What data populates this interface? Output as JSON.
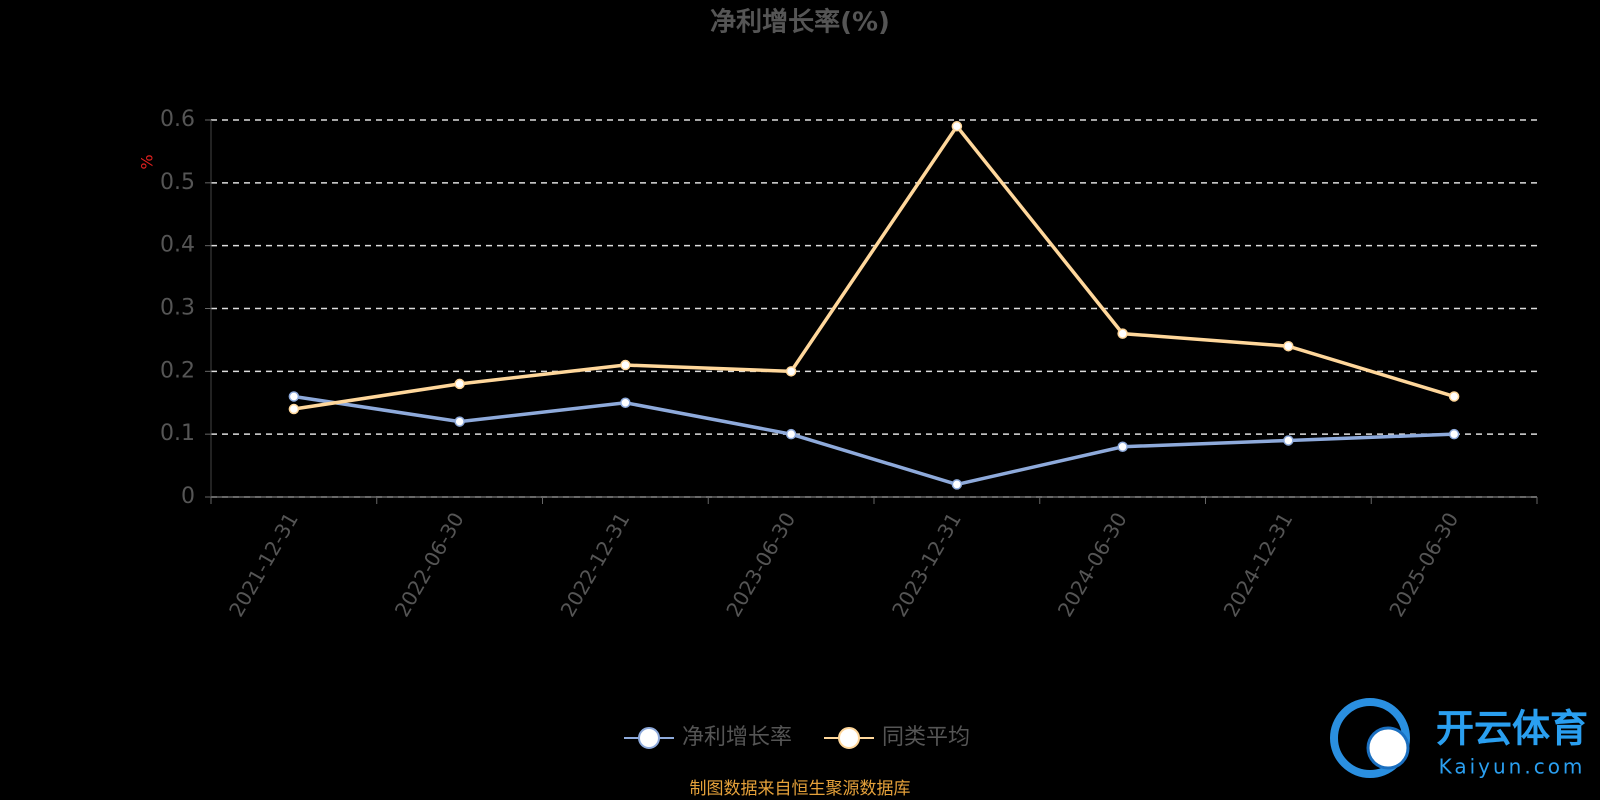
{
  "chart_data": {
    "type": "line",
    "title": "净利增长率(%)",
    "y_label": "%",
    "x": [
      "2021-12-31",
      "2022-06-30",
      "2022-12-31",
      "2023-06-30",
      "2023-12-31",
      "2024-06-30",
      "2024-12-31",
      "2025-06-30"
    ],
    "series": [
      {
        "name": "净利增长率",
        "color": "#8eaadb",
        "values": [
          0.16,
          0.12,
          0.15,
          0.1,
          0.02,
          0.08,
          0.09,
          0.1
        ]
      },
      {
        "name": "同类平均",
        "color": "#ffd79b",
        "values": [
          0.14,
          0.18,
          0.21,
          0.2,
          0.59,
          0.26,
          0.24,
          0.16
        ]
      }
    ],
    "ylim": [
      0,
      0.6
    ],
    "yticks": [
      0,
      0.1,
      0.2,
      0.3,
      0.4,
      0.5,
      0.6
    ],
    "grid": true,
    "legend": "bottom",
    "source": "制图数据来自恒生聚源数据库"
  },
  "watermark": {
    "brand": "开云体育",
    "site": "Kaiyun.com"
  }
}
